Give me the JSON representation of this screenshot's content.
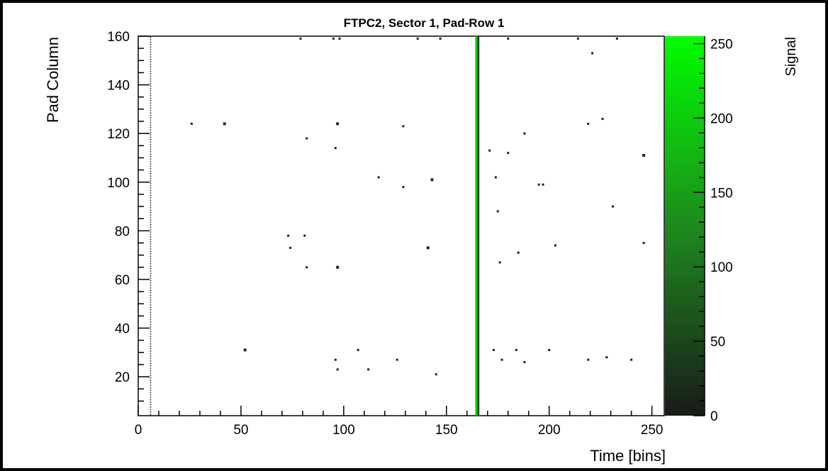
{
  "chart_data": {
    "type": "heatmap",
    "title": "FTPC2,  Sector 1,  Pad-Row 1",
    "xlabel": "Time [bins]",
    "ylabel": "Pad Column",
    "zlabel": "Signal",
    "xlim": [
      0,
      256
    ],
    "ylim": [
      4,
      160
    ],
    "zlim": [
      0,
      255
    ],
    "x_ticks": [
      0,
      50,
      100,
      150,
      200,
      250
    ],
    "x_tick_labels": [
      "0",
      "50",
      "100",
      "150",
      "200",
      "250"
    ],
    "y_ticks": [
      20,
      40,
      60,
      80,
      100,
      120,
      140,
      160
    ],
    "y_tick_labels": [
      "20",
      "40",
      "60",
      "80",
      "100",
      "120",
      "140",
      "160"
    ],
    "z_ticks": [
      0,
      50,
      100,
      150,
      200,
      250
    ],
    "z_tick_labels": [
      "0",
      "50",
      "100",
      "150",
      "200",
      "250"
    ],
    "colormap": {
      "low": "#1a1a1a",
      "mid": "#1e8a1e",
      "high": "#00ff00"
    },
    "grid": false,
    "bands": [
      {
        "x": 164.5,
        "y_from": 4,
        "y_to": 160,
        "value": 200
      },
      {
        "x": 165.5,
        "y_from": 4,
        "y_to": 160,
        "value": 40
      }
    ],
    "points": [
      [
        26,
        124,
        15
      ],
      [
        42,
        124,
        25
      ],
      [
        52,
        31,
        25
      ],
      [
        82,
        118,
        12
      ],
      [
        96,
        114,
        12
      ],
      [
        97,
        124,
        20
      ],
      [
        117,
        102,
        12
      ],
      [
        129,
        123,
        12
      ],
      [
        129,
        98,
        12
      ],
      [
        143,
        101,
        20
      ],
      [
        73,
        78,
        12
      ],
      [
        81,
        78,
        12
      ],
      [
        74,
        73,
        15
      ],
      [
        82,
        65,
        12
      ],
      [
        97,
        65,
        20
      ],
      [
        141,
        73,
        20
      ],
      [
        107,
        31,
        12
      ],
      [
        96,
        27,
        12
      ],
      [
        97,
        23,
        15
      ],
      [
        112,
        23,
        15
      ],
      [
        126,
        27,
        12
      ],
      [
        145,
        21,
        12
      ],
      [
        171,
        113,
        12
      ],
      [
        180,
        112,
        15
      ],
      [
        188,
        120,
        12
      ],
      [
        174,
        102,
        12
      ],
      [
        195,
        99,
        12
      ],
      [
        197,
        99,
        12
      ],
      [
        175,
        88,
        12
      ],
      [
        231,
        90,
        12
      ],
      [
        226,
        126,
        12
      ],
      [
        219,
        124,
        12
      ],
      [
        246,
        111,
        25
      ],
      [
        221,
        153,
        12
      ],
      [
        176,
        67,
        12
      ],
      [
        185,
        71,
        12
      ],
      [
        203,
        74,
        12
      ],
      [
        246,
        75,
        15
      ],
      [
        173,
        31,
        12
      ],
      [
        184,
        31,
        12
      ],
      [
        200,
        31,
        12
      ],
      [
        219,
        27,
        12
      ],
      [
        177,
        27,
        12
      ],
      [
        188,
        26,
        12
      ],
      [
        228,
        28,
        15
      ],
      [
        240,
        27,
        12
      ],
      [
        79,
        159,
        12
      ],
      [
        95,
        159,
        12
      ],
      [
        98,
        159,
        12
      ],
      [
        136,
        159,
        12
      ],
      [
        147,
        159,
        12
      ],
      [
        180,
        159,
        12
      ],
      [
        214,
        159,
        12
      ],
      [
        233,
        159,
        12
      ]
    ],
    "edge_column": {
      "x": 6,
      "y_from": 4,
      "y_to": 160,
      "value": 12
    }
  }
}
